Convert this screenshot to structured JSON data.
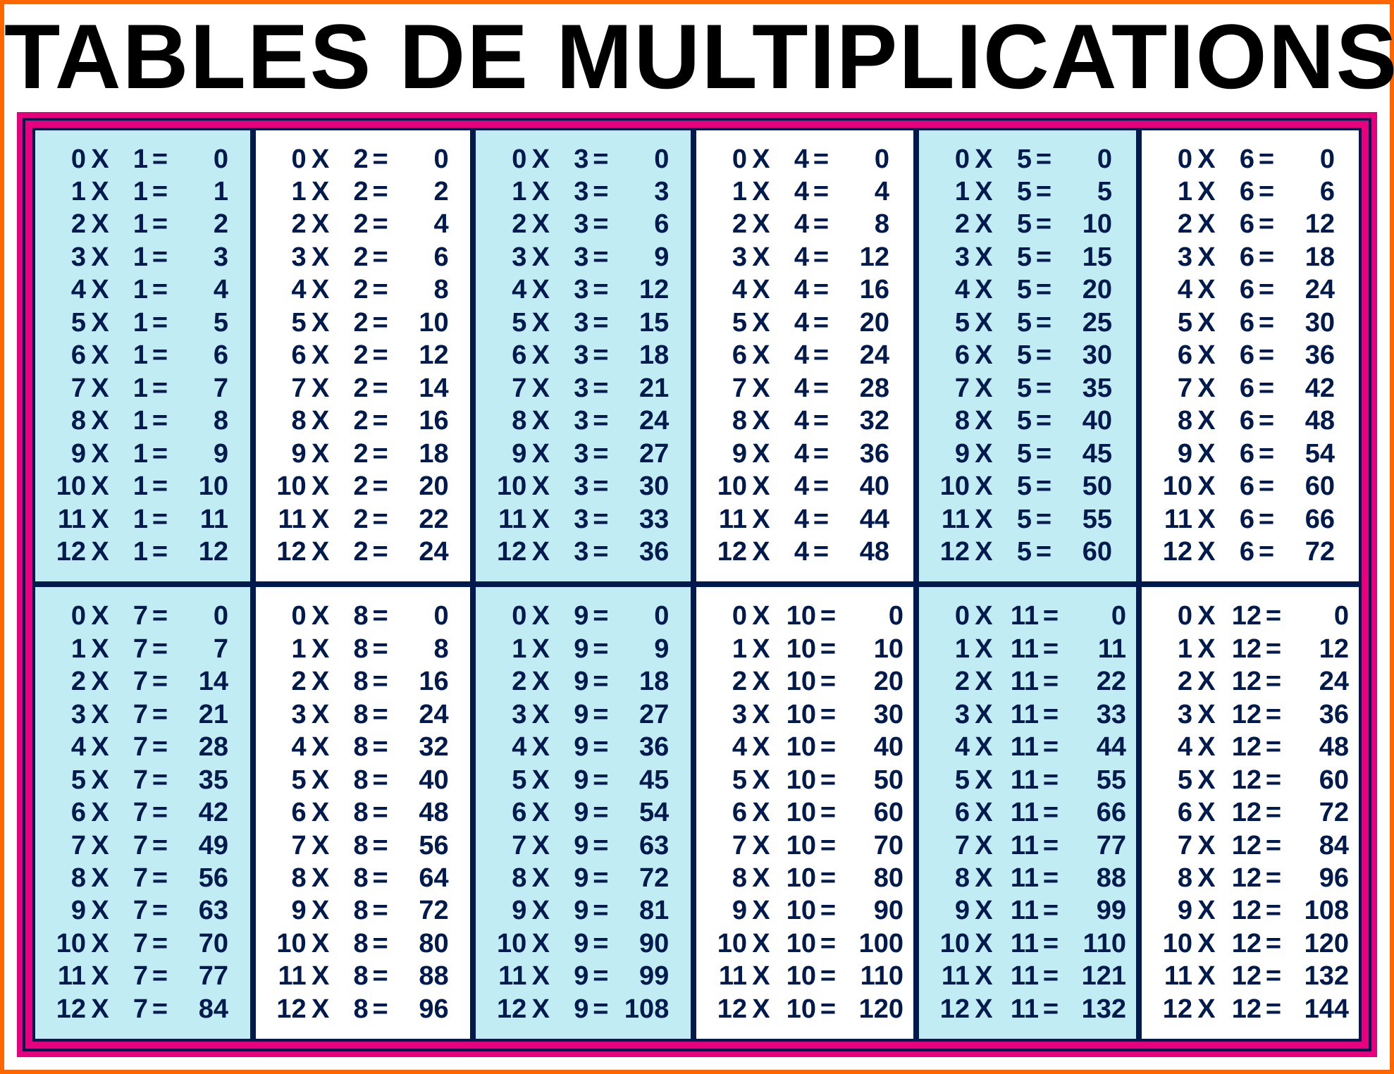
{
  "title": "TABLES DE MULTIPLICATIONS",
  "layout": {
    "outer_border_color": "#ff6600",
    "outer_border_width": 6,
    "page_bg": "#ffffff",
    "title_color": "#000000",
    "title_fontsize": 130,
    "frame_bg": "#e6007e",
    "frame_padding": 8,
    "inner_frame_border_color": "#001a4d",
    "inner_frame_border_width": 4,
    "inner_frame_bg": "#e6007e",
    "grid_cols": 6,
    "grid_rows": 2,
    "cell_border_color": "#001a4d",
    "cell_border_width": 4,
    "cell_bg_odd": "#c1ecf4",
    "cell_bg_even": "#ffffff",
    "text_color": "#001a4d",
    "line_fontsize": 38,
    "col_widths": {
      "a": 48,
      "x": 40,
      "b": 48,
      "eq": 34,
      "r": 80
    },
    "col_widths_wide": {
      "a": 48,
      "x": 40,
      "b": 58,
      "eq": 34,
      "r": 90
    }
  },
  "tables": [
    {
      "multiplier": 1,
      "factors": [
        0,
        1,
        2,
        3,
        4,
        5,
        6,
        7,
        8,
        9,
        10,
        11,
        12
      ]
    },
    {
      "multiplier": 2,
      "factors": [
        0,
        1,
        2,
        3,
        4,
        5,
        6,
        7,
        8,
        9,
        10,
        11,
        12
      ]
    },
    {
      "multiplier": 3,
      "factors": [
        0,
        1,
        2,
        3,
        4,
        5,
        6,
        7,
        8,
        9,
        10,
        11,
        12
      ]
    },
    {
      "multiplier": 4,
      "factors": [
        0,
        1,
        2,
        3,
        4,
        5,
        6,
        7,
        8,
        9,
        10,
        11,
        12
      ]
    },
    {
      "multiplier": 5,
      "factors": [
        0,
        1,
        2,
        3,
        4,
        5,
        6,
        7,
        8,
        9,
        10,
        11,
        12
      ]
    },
    {
      "multiplier": 6,
      "factors": [
        0,
        1,
        2,
        3,
        4,
        5,
        6,
        7,
        8,
        9,
        10,
        11,
        12
      ]
    },
    {
      "multiplier": 7,
      "factors": [
        0,
        1,
        2,
        3,
        4,
        5,
        6,
        7,
        8,
        9,
        10,
        11,
        12
      ]
    },
    {
      "multiplier": 8,
      "factors": [
        0,
        1,
        2,
        3,
        4,
        5,
        6,
        7,
        8,
        9,
        10,
        11,
        12
      ]
    },
    {
      "multiplier": 9,
      "factors": [
        0,
        1,
        2,
        3,
        4,
        5,
        6,
        7,
        8,
        9,
        10,
        11,
        12
      ]
    },
    {
      "multiplier": 10,
      "factors": [
        0,
        1,
        2,
        3,
        4,
        5,
        6,
        7,
        8,
        9,
        10,
        11,
        12
      ]
    },
    {
      "multiplier": 11,
      "factors": [
        0,
        1,
        2,
        3,
        4,
        5,
        6,
        7,
        8,
        9,
        10,
        11,
        12
      ]
    },
    {
      "multiplier": 12,
      "factors": [
        0,
        1,
        2,
        3,
        4,
        5,
        6,
        7,
        8,
        9,
        10,
        11,
        12
      ]
    }
  ],
  "symbols": {
    "times": "X",
    "equals": "="
  }
}
